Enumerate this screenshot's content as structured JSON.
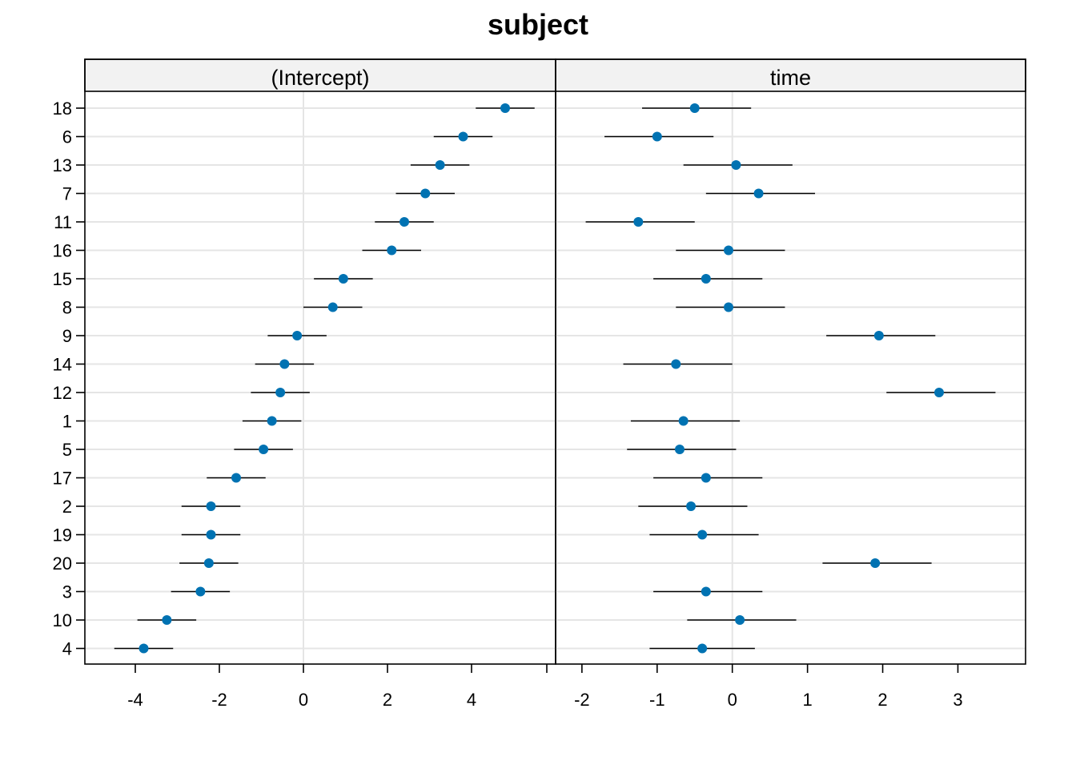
{
  "chart_data": {
    "type": "scatter",
    "title": "subject",
    "grouping": "subject",
    "categories": [
      "18",
      "6",
      "13",
      "7",
      "11",
      "16",
      "15",
      "8",
      "9",
      "14",
      "12",
      "1",
      "5",
      "17",
      "2",
      "19",
      "20",
      "3",
      "10",
      "4"
    ],
    "panels": [
      {
        "name": "(Intercept)",
        "xlim": [
          -5.2,
          6.0
        ],
        "xticks": [
          -4,
          -2,
          0,
          2,
          4
        ],
        "xtick_labels": [
          "-4",
          "-2",
          "0",
          "2",
          "4"
        ],
        "estimate": [
          4.8,
          3.8,
          3.25,
          2.9,
          2.4,
          2.1,
          0.95,
          0.7,
          -0.15,
          -0.45,
          -0.55,
          -0.75,
          -0.95,
          -1.6,
          -2.2,
          -2.2,
          -2.25,
          -2.45,
          -3.25,
          -3.8
        ],
        "lower": [
          4.1,
          3.1,
          2.55,
          2.2,
          1.7,
          1.4,
          0.25,
          0.0,
          -0.85,
          -1.15,
          -1.25,
          -1.45,
          -1.65,
          -2.3,
          -2.9,
          -2.9,
          -2.95,
          -3.15,
          -3.95,
          -4.5
        ],
        "upper": [
          5.5,
          4.5,
          3.95,
          3.6,
          3.1,
          2.8,
          1.65,
          1.4,
          0.55,
          0.25,
          0.15,
          -0.05,
          -0.25,
          -0.9,
          -1.5,
          -1.5,
          -1.55,
          -1.75,
          -2.55,
          -3.1
        ]
      },
      {
        "name": "time",
        "xlim": [
          -2.35,
          3.9
        ],
        "xticks": [
          -2,
          -1,
          0,
          1,
          2,
          3
        ],
        "xtick_labels": [
          "-2",
          "-1",
          "0",
          "1",
          "2",
          "3"
        ],
        "estimate": [
          -0.5,
          -1.0,
          0.05,
          0.35,
          -1.25,
          -0.05,
          -0.35,
          -0.05,
          1.95,
          -0.75,
          2.75,
          -0.65,
          -0.7,
          -0.35,
          -0.55,
          -0.4,
          1.9,
          -0.35,
          0.1,
          -0.4
        ],
        "lower": [
          -1.2,
          -1.7,
          -0.65,
          -0.35,
          -1.95,
          -0.75,
          -1.05,
          -0.75,
          1.25,
          -1.45,
          2.05,
          -1.35,
          -1.4,
          -1.05,
          -1.25,
          -1.1,
          1.2,
          -1.05,
          -0.6,
          -1.1
        ],
        "upper": [
          0.25,
          -0.25,
          0.8,
          1.1,
          -0.5,
          0.7,
          0.4,
          0.7,
          2.7,
          0.0,
          3.5,
          0.1,
          0.05,
          0.4,
          0.2,
          0.35,
          2.65,
          0.4,
          0.85,
          0.3
        ]
      }
    ],
    "grid": true,
    "colors": {
      "point": "#0072B2",
      "errorbar": "#000000",
      "strip_fill": "#F2F2F2",
      "grid": "#E5E5E5",
      "zero_line": "#E5E5E5"
    }
  }
}
